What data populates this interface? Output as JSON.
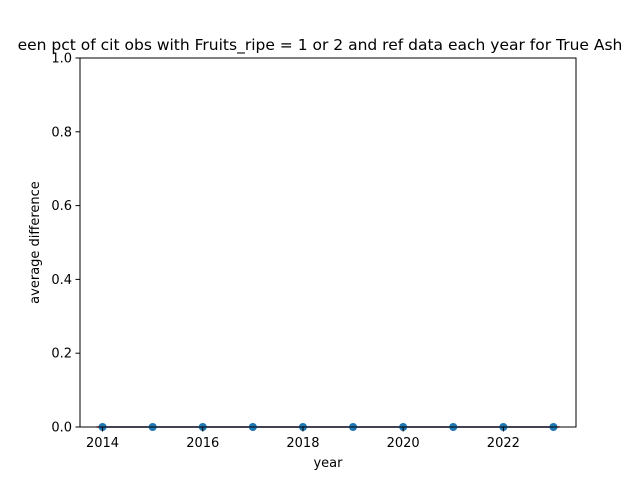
{
  "chart_data": {
    "type": "line",
    "title": "een pct of cit obs with Fruits_ripe = 1 or 2 and ref data each year for True Ash",
    "xlabel": "year",
    "ylabel": "average difference",
    "x": [
      2014,
      2015,
      2016,
      2017,
      2018,
      2019,
      2020,
      2021,
      2022,
      2023
    ],
    "series": [
      {
        "values": [
          0,
          0,
          0,
          0,
          0,
          0,
          0,
          0,
          0,
          0
        ],
        "color": "#1f77b4",
        "markers": true
      }
    ],
    "xlim": [
      2013.55,
      2023.45
    ],
    "ylim": [
      0.0,
      1.0
    ],
    "xticks": [
      2014,
      2016,
      2018,
      2020,
      2022
    ],
    "yticks": [
      0.0,
      0.2,
      0.4,
      0.6,
      0.8,
      1.0
    ],
    "grid": false,
    "baseline_color": "#d62728"
  }
}
